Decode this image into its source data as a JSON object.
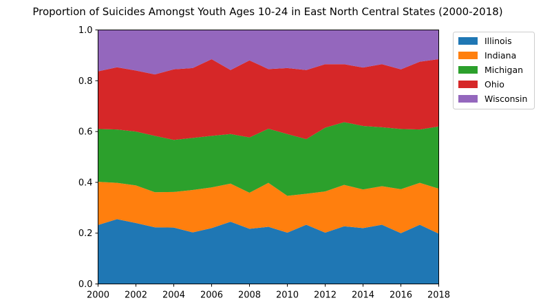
{
  "chart_data": {
    "type": "area",
    "stacked": true,
    "title": "Proportion of Suicides Amongst Youth Ages 10-24 in East North Central States (2000-2018)",
    "xlabel": "",
    "ylabel": "",
    "x": [
      2000,
      2001,
      2002,
      2003,
      2004,
      2005,
      2006,
      2007,
      2008,
      2009,
      2010,
      2011,
      2012,
      2013,
      2014,
      2015,
      2016,
      2017,
      2018
    ],
    "xlim": [
      2000,
      2018
    ],
    "ylim": [
      0,
      1
    ],
    "xticks": [
      "2000",
      "2002",
      "2004",
      "2006",
      "2008",
      "2010",
      "2012",
      "2014",
      "2016",
      "2018"
    ],
    "yticks": [
      "0.0",
      "0.2",
      "0.4",
      "0.6",
      "0.8",
      "1.0"
    ],
    "grid": false,
    "legend_position": "outside-top-right",
    "series": [
      {
        "name": "Illinois",
        "color": "#1f77b4",
        "values": [
          0.232,
          0.255,
          0.24,
          0.223,
          0.222,
          0.203,
          0.22,
          0.245,
          0.217,
          0.225,
          0.202,
          0.233,
          0.202,
          0.227,
          0.22,
          0.233,
          0.2,
          0.233,
          0.198
        ]
      },
      {
        "name": "Indiana",
        "color": "#ff7f0e",
        "values": [
          0.17,
          0.143,
          0.148,
          0.138,
          0.14,
          0.167,
          0.16,
          0.15,
          0.142,
          0.173,
          0.145,
          0.122,
          0.162,
          0.163,
          0.152,
          0.152,
          0.173,
          0.165,
          0.177
        ]
      },
      {
        "name": "Michigan",
        "color": "#2ca02c",
        "values": [
          0.208,
          0.21,
          0.212,
          0.222,
          0.205,
          0.205,
          0.203,
          0.195,
          0.218,
          0.213,
          0.243,
          0.215,
          0.251,
          0.247,
          0.25,
          0.232,
          0.237,
          0.21,
          0.245
        ]
      },
      {
        "name": "Ohio",
        "color": "#d62728",
        "values": [
          0.227,
          0.245,
          0.24,
          0.242,
          0.278,
          0.275,
          0.302,
          0.252,
          0.303,
          0.235,
          0.26,
          0.272,
          0.25,
          0.228,
          0.23,
          0.248,
          0.235,
          0.267,
          0.265
        ]
      },
      {
        "name": "Wisconsin",
        "color": "#9467bd",
        "values": [
          0.163,
          0.147,
          0.16,
          0.175,
          0.155,
          0.15,
          0.115,
          0.158,
          0.12,
          0.154,
          0.15,
          0.158,
          0.135,
          0.135,
          0.148,
          0.135,
          0.155,
          0.125,
          0.115
        ]
      }
    ]
  }
}
